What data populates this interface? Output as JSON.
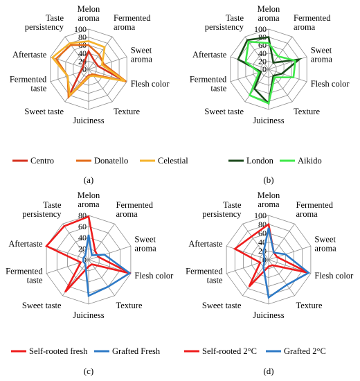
{
  "panels": [
    {
      "label": "(a)",
      "chart_data": {
        "type": "radar",
        "axes": [
          "Melon aroma",
          "Fermented aroma",
          "Sweet aroma",
          "Flesh color",
          "Texture",
          "Juiciness",
          "Sweet taste",
          "Fermented taste",
          "Aftertaste",
          "Taste persistency"
        ],
        "ticks": [
          0,
          20,
          40,
          60,
          80,
          100
        ],
        "rmax": 100,
        "series": [
          {
            "name": "Centro",
            "color": "#d6311e",
            "values": [
              45,
              25,
              25,
              95,
              18,
              15,
              85,
              22,
              15,
              20
            ]
          },
          {
            "name": "Donatello",
            "color": "#e36c1a",
            "values": [
              60,
              45,
              40,
              98,
              15,
              20,
              85,
              55,
              85,
              75
            ]
          },
          {
            "name": "Celestial",
            "color": "#f5b32c",
            "values": [
              70,
              68,
              35,
              95,
              20,
              18,
              80,
              55,
              95,
              80
            ]
          }
        ]
      }
    },
    {
      "label": "(b)",
      "chart_data": {
        "type": "radar",
        "axes": [
          "Melon aroma",
          "Fermented aroma",
          "Sweet aroma",
          "Flesh color",
          "Texture",
          "Juiciness",
          "Sweet taste",
          "Fermented taste",
          "Aftertaste",
          "Taste persistency"
        ],
        "ticks": [
          0,
          20,
          40,
          60,
          80,
          100
        ],
        "rmax": 100,
        "series": [
          {
            "name": "London",
            "color": "#1d4a1d",
            "values": [
              80,
              20,
              80,
              35,
              20,
              85,
              60,
              20,
              80,
              90
            ]
          },
          {
            "name": "Aikido",
            "color": "#3fe84a",
            "values": [
              65,
              40,
              70,
              65,
              25,
              85,
              80,
              25,
              60,
              85
            ]
          }
        ]
      }
    },
    {
      "label": "(c)",
      "chart_data": {
        "type": "radar",
        "axes": [
          "Melon aroma",
          "Fermented aroma",
          "Sweet aroma",
          "Flesh color",
          "Texture",
          "Juiciness",
          "Sweet taste",
          "Fermented taste",
          "Aftertaste",
          "Taste persistency"
        ],
        "ticks": [
          0,
          20,
          40,
          60,
          80
        ],
        "rmax": 80,
        "series": [
          {
            "name": "Self-rooted fresh",
            "color": "#ee1c1c",
            "values": [
              78,
              20,
              18,
              80,
              10,
              12,
              72,
              15,
              82,
              75
            ]
          },
          {
            "name": "Grafted Fresh",
            "color": "#2e7ac6",
            "values": [
              45,
              10,
              30,
              78,
              60,
              65,
              10,
              10,
              10,
              10
            ]
          }
        ]
      }
    },
    {
      "label": "(d)",
      "chart_data": {
        "type": "radar",
        "axes": [
          "Melon aroma",
          "Fermented aroma",
          "Sweet aroma",
          "Flesh color",
          "Texture",
          "Juiciness",
          "Sweet taste",
          "Fermented taste",
          "Aftertaste",
          "Taste persistency"
        ],
        "ticks": [
          0,
          20,
          40,
          60,
          80,
          100
        ],
        "rmax": 100,
        "series": [
          {
            "name": "Self-rooted 2°C",
            "color": "#ee1c1c",
            "values": [
              80,
              20,
              20,
              95,
              15,
              15,
              75,
              20,
              80,
              65
            ]
          },
          {
            "name": "Grafted 2°C",
            "color": "#2e7ac6",
            "values": [
              72,
              20,
              40,
              95,
              70,
              85,
              20,
              10,
              10,
              20
            ]
          }
        ]
      }
    }
  ]
}
